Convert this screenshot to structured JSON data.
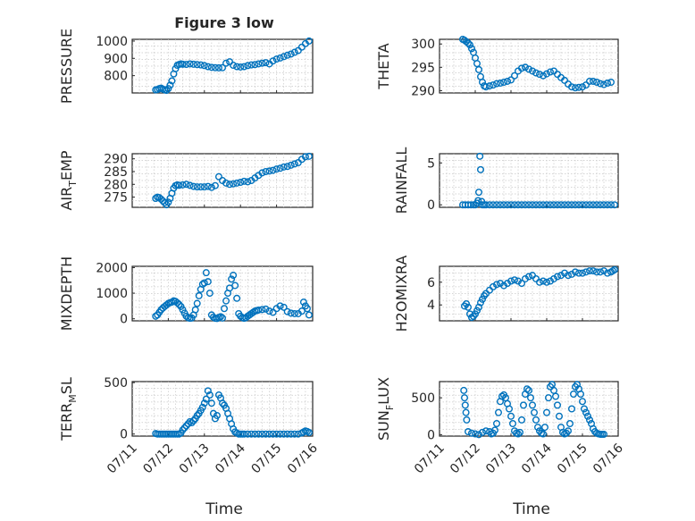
{
  "figure": {
    "title": "Figure 3 low",
    "x_axis_label": "Time"
  },
  "chart_data": [
    {
      "id": "pressure",
      "type": "scatter",
      "ylabel": "PRESSURE",
      "ylim": [
        700,
        1010
      ],
      "yticks": [
        800,
        900,
        1000
      ],
      "ytick_labels": [
        "800",
        "900",
        "1000"
      ],
      "xlim": [
        0,
        5
      ],
      "xticks": [
        0,
        1,
        2,
        3,
        4,
        5
      ],
      "xtick_labels": [
        "07/11",
        "07/12",
        "07/13",
        "07/14",
        "07/15",
        "07/16"
      ],
      "grid": "on",
      "title": "Figure 3 low",
      "marker_color": "#0072BD",
      "x": [
        0.65,
        0.7,
        0.75,
        0.8,
        0.85,
        0.9,
        0.95,
        1.0,
        1.05,
        1.1,
        1.15,
        1.2,
        1.25,
        1.3,
        1.35,
        1.4,
        1.5,
        1.6,
        1.7,
        1.8,
        1.9,
        2.0,
        2.1,
        2.2,
        2.3,
        2.4,
        2.5,
        2.6,
        2.7,
        2.8,
        2.9,
        3.0,
        3.1,
        3.2,
        3.3,
        3.4,
        3.5,
        3.6,
        3.7,
        3.8,
        3.9,
        4.0,
        4.1,
        4.2,
        4.3,
        4.4,
        4.5,
        4.6,
        4.7,
        4.8,
        4.9
      ],
      "y": [
        718,
        720,
        725,
        728,
        722,
        718,
        715,
        725,
        745,
        770,
        810,
        840,
        860,
        865,
        868,
        866,
        865,
        868,
        866,
        864,
        862,
        858,
        852,
        848,
        846,
        845,
        846,
        872,
        880,
        860,
        852,
        850,
        852,
        858,
        862,
        864,
        868,
        872,
        875,
        868,
        885,
        896,
        902,
        910,
        918,
        925,
        935,
        945,
        965,
        985,
        1000
      ]
    },
    {
      "id": "theta",
      "type": "scatter",
      "ylabel": "THETA",
      "ylim": [
        289.5,
        301
      ],
      "yticks": [
        290,
        295,
        300
      ],
      "ytick_labels": [
        "290",
        "295",
        "300"
      ],
      "xlim": [
        0,
        5
      ],
      "xticks": [
        0,
        1,
        2,
        3,
        4,
        5
      ],
      "xtick_labels": [
        "07/11",
        "07/12",
        "07/13",
        "07/14",
        "07/15",
        "07/16"
      ],
      "grid": "on",
      "marker_color": "#0072BD",
      "x": [
        0.65,
        0.7,
        0.75,
        0.8,
        0.85,
        0.9,
        0.95,
        1.0,
        1.05,
        1.1,
        1.15,
        1.2,
        1.25,
        1.3,
        1.4,
        1.5,
        1.6,
        1.7,
        1.8,
        1.9,
        2.0,
        2.1,
        2.2,
        2.3,
        2.4,
        2.5,
        2.6,
        2.7,
        2.8,
        2.9,
        3.0,
        3.1,
        3.2,
        3.3,
        3.4,
        3.5,
        3.6,
        3.7,
        3.8,
        3.9,
        4.0,
        4.1,
        4.2,
        4.3,
        4.4,
        4.5,
        4.6,
        4.7,
        4.8
      ],
      "y": [
        301,
        300.8,
        300.5,
        300.2,
        299.8,
        299,
        298.2,
        297,
        295.8,
        294.5,
        293,
        291.8,
        291,
        290.8,
        291,
        291.2,
        291.5,
        291.6,
        291.8,
        292,
        292.3,
        293.2,
        294.2,
        294.8,
        295,
        294.6,
        294.2,
        293.8,
        293.5,
        293.2,
        293.6,
        294,
        294.2,
        293.5,
        292.8,
        292.2,
        291.4,
        290.8,
        290.6,
        290.7,
        290.8,
        291.2,
        292,
        292,
        291.8,
        291.5,
        291.3,
        291.6,
        291.8
      ]
    },
    {
      "id": "air_temp",
      "type": "scatter",
      "ylabel": "AIR",
      "ylabel_subscript": "T",
      "ylabel_suffix": "EMP",
      "ylim": [
        271,
        292
      ],
      "yticks": [
        275,
        280,
        285,
        290
      ],
      "ytick_labels": [
        "275",
        "280",
        "285",
        "290"
      ],
      "xlim": [
        0,
        5
      ],
      "xticks": [
        0,
        1,
        2,
        3,
        4,
        5
      ],
      "xtick_labels": [
        "07/11",
        "07/12",
        "07/13",
        "07/14",
        "07/15",
        "07/16"
      ],
      "grid": "on",
      "marker_color": "#0072BD",
      "x": [
        0.65,
        0.7,
        0.75,
        0.8,
        0.85,
        0.9,
        0.95,
        1.0,
        1.05,
        1.1,
        1.15,
        1.2,
        1.25,
        1.3,
        1.4,
        1.5,
        1.6,
        1.7,
        1.8,
        1.9,
        2.0,
        2.1,
        2.2,
        2.3,
        2.4,
        2.5,
        2.6,
        2.7,
        2.8,
        2.9,
        3.0,
        3.1,
        3.2,
        3.3,
        3.4,
        3.5,
        3.6,
        3.7,
        3.8,
        3.9,
        4.0,
        4.1,
        4.2,
        4.3,
        4.4,
        4.5,
        4.6,
        4.7,
        4.8,
        4.9
      ],
      "y": [
        274.5,
        275,
        274.8,
        274.2,
        273.5,
        272.8,
        272,
        273,
        274.5,
        276.5,
        278.5,
        279.5,
        279.8,
        279.6,
        279.8,
        280,
        279.6,
        279.2,
        279,
        279,
        279,
        279.2,
        278.8,
        279.5,
        283,
        281.5,
        280.5,
        280,
        280.2,
        280.5,
        280.8,
        281.2,
        281,
        281.5,
        282.5,
        283.5,
        284.5,
        285,
        285.2,
        285.5,
        286,
        286.3,
        286.8,
        287,
        287.5,
        288,
        288.5,
        289.8,
        290.8,
        291
      ]
    },
    {
      "id": "rainfall",
      "type": "scatter",
      "ylabel": "RAINFALL",
      "ylim": [
        -0.3,
        6.1
      ],
      "yticks": [
        0,
        5
      ],
      "ytick_labels": [
        "0",
        "5"
      ],
      "xlim": [
        0,
        5
      ],
      "xticks": [
        0,
        1,
        2,
        3,
        4,
        5
      ],
      "xtick_labels": [
        "07/11",
        "07/12",
        "07/13",
        "07/14",
        "07/15",
        "07/16"
      ],
      "grid": "on",
      "marker_color": "#0072BD",
      "x": [
        0.65,
        0.72,
        0.8,
        0.88,
        0.95,
        1.0,
        1.05,
        1.08,
        1.1,
        1.13,
        1.15,
        1.18,
        1.2,
        1.25,
        1.3,
        1.4,
        1.5,
        1.6,
        1.7,
        1.8,
        1.9,
        2.0,
        2.1,
        2.2,
        2.3,
        2.4,
        2.5,
        2.6,
        2.7,
        2.8,
        2.9,
        3.0,
        3.1,
        3.2,
        3.3,
        3.4,
        3.5,
        3.6,
        3.7,
        3.8,
        3.9,
        4.0,
        4.1,
        4.2,
        4.3,
        4.4,
        4.5,
        4.6,
        4.7,
        4.8,
        4.9
      ],
      "y": [
        0,
        0,
        0,
        0,
        0,
        0,
        0.2,
        0.5,
        1.5,
        5.8,
        4.2,
        0.4,
        0,
        0,
        0,
        0,
        0,
        0,
        0,
        0,
        0,
        0,
        0,
        0,
        0,
        0,
        0,
        0,
        0,
        0,
        0,
        0,
        0,
        0,
        0,
        0,
        0,
        0,
        0,
        0,
        0,
        0,
        0,
        0,
        0,
        0,
        0,
        0,
        0,
        0,
        0
      ]
    },
    {
      "id": "mixdepth",
      "type": "scatter",
      "ylabel": "MIXDEPTH",
      "ylim": [
        -80,
        2050
      ],
      "yticks": [
        0,
        1000,
        2000
      ],
      "ytick_labels": [
        "0",
        "1000",
        "2000"
      ],
      "xlim": [
        0,
        5
      ],
      "xticks": [
        0,
        1,
        2,
        3,
        4,
        5
      ],
      "xtick_labels": [
        "07/11",
        "07/12",
        "07/13",
        "07/14",
        "07/15",
        "07/16"
      ],
      "grid": "on",
      "marker_color": "#0072BD",
      "x": [
        0.65,
        0.7,
        0.75,
        0.8,
        0.85,
        0.9,
        0.95,
        1.0,
        1.05,
        1.1,
        1.15,
        1.2,
        1.25,
        1.3,
        1.35,
        1.4,
        1.45,
        1.5,
        1.55,
        1.6,
        1.65,
        1.7,
        1.75,
        1.8,
        1.85,
        1.9,
        1.95,
        2.0,
        2.05,
        2.1,
        2.15,
        2.2,
        2.25,
        2.3,
        2.35,
        2.4,
        2.45,
        2.5,
        2.55,
        2.6,
        2.65,
        2.7,
        2.75,
        2.8,
        2.85,
        2.9,
        2.95,
        3.0,
        3.05,
        3.1,
        3.15,
        3.2,
        3.25,
        3.3,
        3.35,
        3.4,
        3.45,
        3.5,
        3.6,
        3.7,
        3.8,
        3.9,
        4.0,
        4.1,
        4.2,
        4.3,
        4.4,
        4.5,
        4.6,
        4.7,
        4.75,
        4.8,
        4.85,
        4.9
      ],
      "y": [
        100,
        150,
        250,
        350,
        420,
        480,
        540,
        600,
        630,
        650,
        700,
        680,
        620,
        560,
        480,
        350,
        220,
        100,
        40,
        20,
        30,
        150,
        350,
        600,
        900,
        1150,
        1350,
        1400,
        1800,
        1450,
        1000,
        150,
        60,
        20,
        10,
        50,
        80,
        30,
        400,
        700,
        1000,
        1200,
        1550,
        1700,
        1300,
        800,
        200,
        100,
        50,
        20,
        40,
        100,
        150,
        200,
        250,
        300,
        320,
        340,
        360,
        380,
        300,
        250,
        400,
        500,
        450,
        280,
        220,
        200,
        200,
        300,
        650,
        500,
        400,
        150
      ]
    },
    {
      "id": "h2omixra",
      "type": "scatter",
      "ylabel": "H2OMIXRA",
      "ylim": [
        2.6,
        7.4
      ],
      "yticks": [
        4,
        6
      ],
      "ytick_labels": [
        "4",
        "6"
      ],
      "xlim": [
        0,
        5
      ],
      "xticks": [
        0,
        1,
        2,
        3,
        4,
        5
      ],
      "xtick_labels": [
        "07/11",
        "07/12",
        "07/13",
        "07/14",
        "07/15",
        "07/16"
      ],
      "grid": "on",
      "marker_color": "#0072BD",
      "x": [
        0.7,
        0.75,
        0.8,
        0.85,
        0.9,
        0.95,
        1.0,
        1.05,
        1.1,
        1.15,
        1.2,
        1.25,
        1.3,
        1.4,
        1.5,
        1.6,
        1.7,
        1.8,
        1.9,
        2.0,
        2.1,
        2.2,
        2.3,
        2.4,
        2.5,
        2.6,
        2.7,
        2.8,
        2.9,
        3.0,
        3.1,
        3.2,
        3.3,
        3.4,
        3.5,
        3.6,
        3.7,
        3.8,
        3.9,
        4.0,
        4.1,
        4.2,
        4.3,
        4.4,
        4.5,
        4.6,
        4.7,
        4.8,
        4.85,
        4.9
      ],
      "y": [
        3.9,
        4.1,
        3.8,
        3.2,
        2.9,
        3,
        3.2,
        3.5,
        3.8,
        4.2,
        4.5,
        4.8,
        5,
        5.3,
        5.6,
        5.8,
        5.9,
        5.7,
        5.9,
        6.1,
        6.2,
        6.1,
        5.9,
        6.3,
        6.5,
        6.6,
        6.3,
        6,
        6.1,
        6,
        6.1,
        6.3,
        6.5,
        6.6,
        6.8,
        6.6,
        6.7,
        6.9,
        6.8,
        6.8,
        6.9,
        7,
        7,
        6.9,
        6.9,
        7,
        6.8,
        6.9,
        7,
        7.1
      ]
    },
    {
      "id": "terr_msl",
      "type": "scatter",
      "ylabel": "TERR",
      "ylabel_subscript": "M",
      "ylabel_suffix": "SL",
      "ylim": [
        -20,
        510
      ],
      "yticks": [
        0,
        500
      ],
      "ytick_labels": [
        "0",
        "500"
      ],
      "xlim": [
        0,
        5
      ],
      "xticks": [
        0,
        1,
        2,
        3,
        4,
        5
      ],
      "xtick_labels": [
        "07/11",
        "07/12",
        "07/13",
        "07/14",
        "07/15",
        "07/16"
      ],
      "grid": "on",
      "marker_color": "#0072BD",
      "x": [
        0.65,
        0.7,
        0.75,
        0.8,
        0.85,
        0.9,
        0.95,
        1.0,
        1.05,
        1.1,
        1.15,
        1.2,
        1.25,
        1.3,
        1.35,
        1.4,
        1.45,
        1.5,
        1.55,
        1.6,
        1.65,
        1.7,
        1.75,
        1.8,
        1.85,
        1.9,
        1.95,
        2.0,
        2.05,
        2.1,
        2.15,
        2.2,
        2.25,
        2.3,
        2.35,
        2.4,
        2.45,
        2.5,
        2.55,
        2.6,
        2.65,
        2.7,
        2.75,
        2.8,
        2.85,
        2.9,
        2.95,
        3.0,
        3.05,
        3.1,
        3.2,
        3.3,
        3.4,
        3.5,
        3.6,
        3.7,
        3.8,
        3.9,
        4.0,
        4.1,
        4.2,
        4.3,
        4.4,
        4.5,
        4.6,
        4.7,
        4.75,
        4.8,
        4.85,
        4.9
      ],
      "y": [
        5,
        0,
        0,
        0,
        0,
        0,
        0,
        0,
        0,
        0,
        0,
        0,
        0,
        0,
        10,
        40,
        60,
        80,
        100,
        120,
        110,
        130,
        150,
        180,
        200,
        230,
        260,
        300,
        340,
        420,
        380,
        300,
        200,
        150,
        180,
        380,
        350,
        300,
        280,
        250,
        200,
        150,
        100,
        50,
        20,
        10,
        0,
        0,
        0,
        0,
        0,
        0,
        0,
        0,
        0,
        0,
        0,
        0,
        0,
        0,
        0,
        0,
        0,
        0,
        0,
        10,
        20,
        30,
        25,
        15
      ]
    },
    {
      "id": "sun_flux",
      "type": "scatter",
      "ylabel": "SUN",
      "ylabel_subscript": "F",
      "ylabel_suffix": "LUX",
      "ylim": [
        -20,
        720
      ],
      "yticks": [
        0,
        500
      ],
      "ytick_labels": [
        "0",
        "500"
      ],
      "xlim": [
        0,
        5
      ],
      "xticks": [
        0,
        1,
        2,
        3,
        4,
        5
      ],
      "xtick_labels": [
        "07/11",
        "07/12",
        "07/13",
        "07/14",
        "07/15",
        "07/16"
      ],
      "grid": "on",
      "marker_color": "#0072BD",
      "x": [
        0.68,
        0.7,
        0.72,
        0.74,
        0.76,
        0.8,
        0.9,
        1.0,
        1.1,
        1.2,
        1.3,
        1.4,
        1.45,
        1.5,
        1.55,
        1.6,
        1.65,
        1.7,
        1.75,
        1.8,
        1.85,
        1.9,
        1.95,
        2.0,
        2.05,
        2.1,
        2.15,
        2.2,
        2.25,
        2.3,
        2.35,
        2.4,
        2.45,
        2.5,
        2.55,
        2.6,
        2.65,
        2.7,
        2.75,
        2.8,
        2.85,
        2.9,
        2.95,
        3.0,
        3.05,
        3.1,
        3.15,
        3.2,
        3.25,
        3.3,
        3.35,
        3.4,
        3.45,
        3.5,
        3.55,
        3.6,
        3.65,
        3.7,
        3.75,
        3.8,
        3.85,
        3.9,
        3.95,
        4.0,
        4.05,
        4.1,
        4.15,
        4.2,
        4.25,
        4.3,
        4.35,
        4.4,
        4.45,
        4.5,
        4.55,
        4.6
      ],
      "y": [
        600,
        500,
        400,
        300,
        200,
        40,
        20,
        10,
        0,
        30,
        50,
        40,
        10,
        20,
        60,
        150,
        300,
        450,
        520,
        540,
        500,
        420,
        350,
        250,
        150,
        50,
        20,
        10,
        30,
        200,
        400,
        550,
        620,
        600,
        500,
        400,
        300,
        200,
        100,
        50,
        20,
        10,
        100,
        300,
        500,
        650,
        680,
        600,
        520,
        400,
        250,
        100,
        30,
        10,
        20,
        50,
        150,
        350,
        550,
        650,
        680,
        620,
        550,
        450,
        350,
        300,
        250,
        200,
        150,
        80,
        40,
        20,
        10,
        5,
        5,
        5
      ]
    }
  ]
}
